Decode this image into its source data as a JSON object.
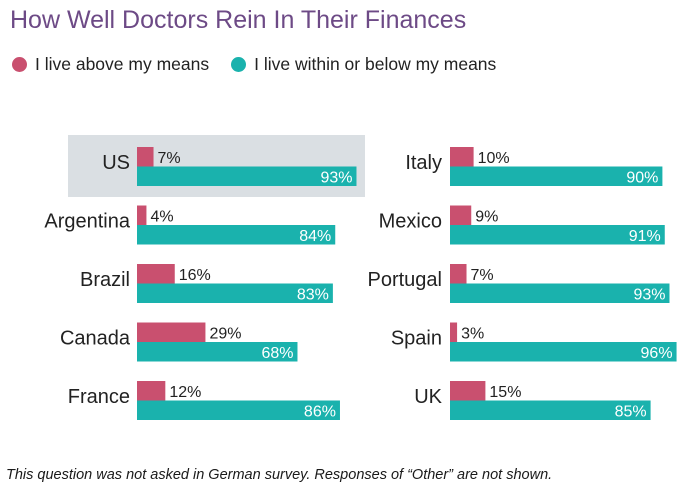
{
  "colors": {
    "above": "#c9506f",
    "within": "#1ab2ad",
    "highlight": "#dadfe3",
    "title": "#6d4a86"
  },
  "chart_data": {
    "type": "bar",
    "orientation": "horizontal",
    "title": "How Well Doctors Rein In Their Finances",
    "legend": [
      {
        "key": "above",
        "label": "I live above my means"
      },
      {
        "key": "within",
        "label": "I live within or below my means"
      }
    ],
    "value_suffix": "%",
    "xlim": [
      0,
      100
    ],
    "highlighted": "US",
    "panels": [
      {
        "categories": [
          "US",
          "Argentina",
          "Brazil",
          "Canada",
          "France"
        ],
        "series": [
          {
            "name": "I live above my means",
            "values": [
              7,
              4,
              16,
              29,
              12
            ]
          },
          {
            "name": "I live within or below my means",
            "values": [
              93,
              84,
              83,
              68,
              86
            ]
          }
        ]
      },
      {
        "categories": [
          "Italy",
          "Mexico",
          "Portugal",
          "Spain",
          "UK"
        ],
        "series": [
          {
            "name": "I live above my means",
            "values": [
              10,
              9,
              7,
              3,
              15
            ]
          },
          {
            "name": "I live within or below my means",
            "values": [
              90,
              91,
              93,
              96,
              85
            ]
          }
        ]
      }
    ]
  },
  "footnote": "This question was not asked in German survey. Responses of “Other” are not shown."
}
